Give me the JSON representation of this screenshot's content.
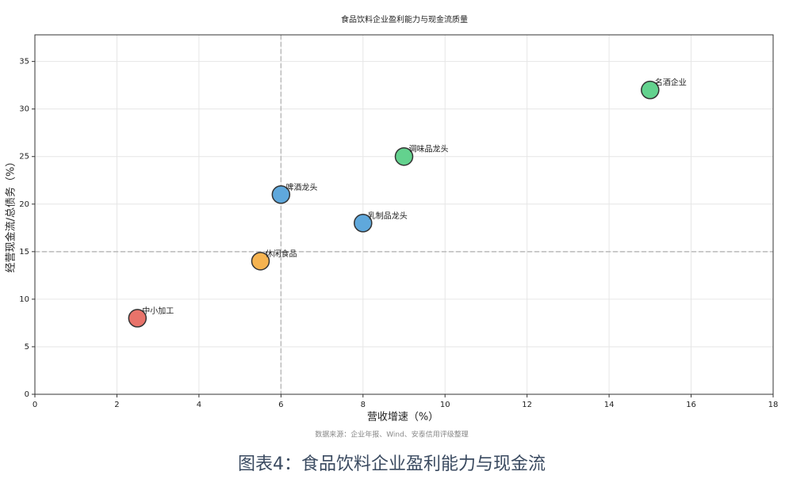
{
  "chart_data": {
    "type": "scatter",
    "title": "食品饮料企业盈利能力与现金流质量",
    "x_label": "营收增速（%）",
    "y_label": "经营现金流/总债务（%）",
    "x": [
      2.5,
      5.5,
      6,
      8,
      9,
      15
    ],
    "values": [
      8,
      14,
      21,
      18,
      25,
      32
    ],
    "point_labels": [
      "中小加工",
      "休闲食品",
      "啤酒龙头",
      "乳制品龙头",
      "调味品龙头",
      "名酒企业"
    ],
    "colors": [
      "#e8736a",
      "#f5b350",
      "#5fa8dc",
      "#5fa8dc",
      "#63d28e",
      "#63d28e"
    ],
    "xlim": [
      0,
      18
    ],
    "ylim": [
      0,
      37.8
    ],
    "xticks": [
      0,
      2,
      4,
      6,
      8,
      10,
      12,
      14,
      16,
      18
    ],
    "yticks": [
      0,
      5,
      10,
      15,
      20,
      25,
      30,
      35
    ],
    "reference_x": 6,
    "reference_y": 15,
    "grid": true,
    "source": "数据来源：企业年报、Wind、安泰信用评级整理"
  },
  "caption": "图表4：食品饮料企业盈利能力与现金流"
}
